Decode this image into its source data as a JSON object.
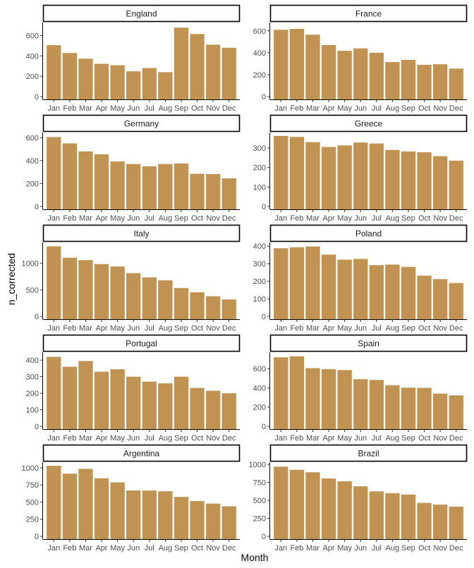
{
  "chart_data": {
    "type": "bar",
    "xlabel": "Month",
    "ylabel": "n_corrected",
    "bar_color": "#c19352",
    "months": [
      "Jan",
      "Feb",
      "Mar",
      "Apr",
      "May",
      "Jun",
      "Jul",
      "Aug",
      "Sep",
      "Oct",
      "Nov",
      "Dec"
    ],
    "panels": [
      {
        "name": "England",
        "values": [
          505,
          428,
          372,
          322,
          308,
          248,
          280,
          240,
          678,
          615,
          510,
          480
        ],
        "ylim": [
          0,
          700
        ],
        "yticks": [
          0,
          200,
          400,
          600
        ]
      },
      {
        "name": "France",
        "values": [
          610,
          618,
          565,
          470,
          418,
          440,
          400,
          315,
          335,
          290,
          295,
          255
        ],
        "ylim": [
          0,
          650
        ],
        "yticks": [
          0,
          200,
          400,
          600
        ]
      },
      {
        "name": "Germany",
        "values": [
          605,
          550,
          480,
          455,
          392,
          370,
          350,
          370,
          375,
          285,
          282,
          245
        ],
        "ylim": [
          0,
          620
        ],
        "yticks": [
          0,
          200,
          400,
          600
        ]
      },
      {
        "name": "Greece",
        "values": [
          362,
          357,
          330,
          305,
          313,
          328,
          323,
          290,
          282,
          278,
          258,
          235
        ],
        "ylim": [
          0,
          365
        ],
        "yticks": [
          0,
          100,
          200,
          300
        ]
      },
      {
        "name": "Italy",
        "values": [
          1320,
          1105,
          1060,
          985,
          940,
          815,
          735,
          680,
          535,
          455,
          380,
          320
        ],
        "ylim": [
          0,
          1340
        ],
        "yticks": [
          0,
          500,
          1000
        ]
      },
      {
        "name": "Poland",
        "values": [
          388,
          393,
          398,
          352,
          323,
          327,
          292,
          295,
          282,
          232,
          212,
          190
        ],
        "ylim": [
          0,
          405
        ],
        "yticks": [
          0,
          100,
          200,
          300,
          400
        ]
      },
      {
        "name": "Portugal",
        "values": [
          420,
          360,
          395,
          330,
          345,
          300,
          270,
          260,
          300,
          232,
          215,
          200
        ],
        "ylim": [
          0,
          430
        ],
        "yticks": [
          0,
          100,
          200,
          300,
          400
        ]
      },
      {
        "name": "Spain",
        "values": [
          718,
          728,
          605,
          595,
          585,
          490,
          482,
          428,
          402,
          400,
          340,
          322
        ],
        "ylim": [
          0,
          740
        ],
        "yticks": [
          0,
          200,
          400,
          600
        ]
      },
      {
        "name": "Argentina",
        "values": [
          1030,
          915,
          985,
          848,
          788,
          670,
          668,
          658,
          575,
          515,
          478,
          438
        ],
        "ylim": [
          0,
          1040
        ],
        "yticks": [
          0,
          250,
          500,
          750,
          1000
        ]
      },
      {
        "name": "Brazil",
        "values": [
          968,
          925,
          890,
          805,
          765,
          695,
          625,
          600,
          580,
          465,
          440,
          412
        ],
        "ylim": [
          0,
          990
        ],
        "yticks": [
          0,
          250,
          500,
          750,
          1000
        ]
      }
    ]
  }
}
